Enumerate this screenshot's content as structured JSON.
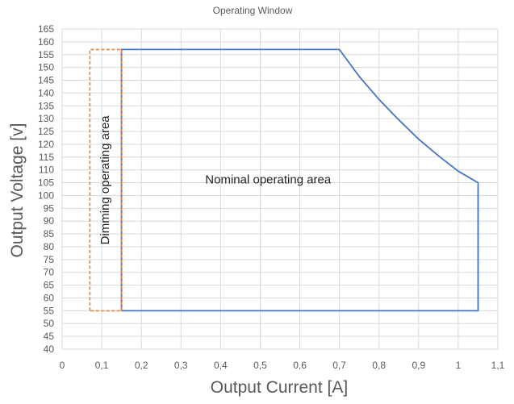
{
  "chart_data": {
    "type": "line",
    "title": "Operating Window",
    "xlabel": "Output Current [A]",
    "ylabel": "Output Voltage [v]",
    "xlim": [
      0,
      1.1
    ],
    "ylim": [
      40,
      165
    ],
    "x_ticks": [
      0,
      0.1,
      0.2,
      0.3,
      0.4,
      0.5,
      0.6,
      0.7,
      0.8,
      0.9,
      1,
      1.1
    ],
    "x_tick_labels": [
      "0",
      "0,1",
      "0,2",
      "0,3",
      "0,4",
      "0,5",
      "0,6",
      "0,7",
      "0,8",
      "0,9",
      "1",
      "1,1"
    ],
    "y_ticks": [
      40,
      45,
      50,
      55,
      60,
      65,
      70,
      75,
      80,
      85,
      90,
      95,
      100,
      105,
      110,
      115,
      120,
      125,
      130,
      135,
      140,
      145,
      150,
      155,
      160,
      165
    ],
    "grid": true,
    "series": [
      {
        "color": "#4472c4",
        "style": "solid",
        "points": [
          [
            0.15,
            55
          ],
          [
            0.15,
            157
          ],
          [
            0.7,
            157
          ],
          [
            0.75,
            146.5
          ],
          [
            0.8,
            137.5
          ],
          [
            0.85,
            129.5
          ],
          [
            0.9,
            122
          ],
          [
            0.95,
            115.5
          ],
          [
            1.0,
            109.5
          ],
          [
            1.05,
            105
          ],
          [
            1.05,
            55
          ],
          [
            0.15,
            55
          ]
        ]
      },
      {
        "color": "#ed7d31",
        "style": "dashed",
        "points": [
          [
            0.07,
            55
          ],
          [
            0.07,
            157
          ],
          [
            0.15,
            157
          ],
          [
            0.15,
            55
          ],
          [
            0.07,
            55
          ]
        ]
      }
    ],
    "annotations": [
      {
        "text": "Nominal operating  area",
        "x": 0.52,
        "y": 106,
        "rotation": 0
      },
      {
        "text": "Dimming operating area",
        "x": 0.11,
        "y": 106,
        "rotation": -90
      }
    ]
  }
}
